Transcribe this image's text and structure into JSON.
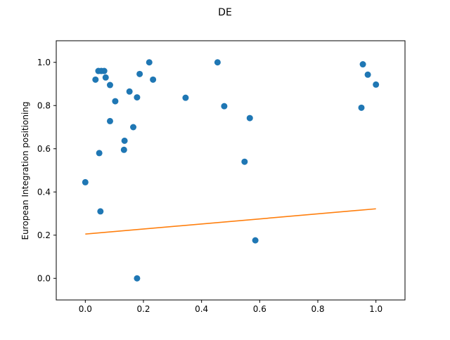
{
  "chart_data": {
    "type": "scatter",
    "title": "DE",
    "xlabel": "",
    "ylabel": "European Integration positioning",
    "xlim": [
      -0.1,
      1.1
    ],
    "ylim": [
      -0.1,
      1.1
    ],
    "xticks": [
      "0.0",
      "0.2",
      "0.4",
      "0.6",
      "0.8",
      "1.0"
    ],
    "yticks": [
      "0.0",
      "0.2",
      "0.4",
      "0.6",
      "0.8",
      "1.0"
    ],
    "grid": false,
    "legend": "none",
    "series": [
      {
        "type": "scatter",
        "color": "#1f77b4",
        "points": [
          [
            0.0,
            0.445
          ],
          [
            0.035,
            0.92
          ],
          [
            0.045,
            0.96
          ],
          [
            0.055,
            0.96
          ],
          [
            0.065,
            0.96
          ],
          [
            0.07,
            0.93
          ],
          [
            0.085,
            0.895
          ],
          [
            0.048,
            0.58
          ],
          [
            0.052,
            0.31
          ],
          [
            0.085,
            0.728
          ],
          [
            0.103,
            0.82
          ],
          [
            0.133,
            0.595
          ],
          [
            0.135,
            0.637
          ],
          [
            0.152,
            0.865
          ],
          [
            0.165,
            0.7
          ],
          [
            0.178,
            0.838
          ],
          [
            0.187,
            0.946
          ],
          [
            0.22,
            1.0
          ],
          [
            0.233,
            0.92
          ],
          [
            0.178,
            0.0
          ],
          [
            0.345,
            0.836
          ],
          [
            0.455,
            1.0
          ],
          [
            0.478,
            0.797
          ],
          [
            0.548,
            0.54
          ],
          [
            0.566,
            0.742
          ],
          [
            0.585,
            0.176
          ],
          [
            0.95,
            0.79
          ],
          [
            0.955,
            0.991
          ],
          [
            0.972,
            0.943
          ],
          [
            1.0,
            0.897
          ]
        ]
      },
      {
        "type": "line",
        "color": "#ff7f0e",
        "points": [
          [
            0.0,
            0.205
          ],
          [
            1.0,
            0.322
          ]
        ]
      }
    ]
  }
}
